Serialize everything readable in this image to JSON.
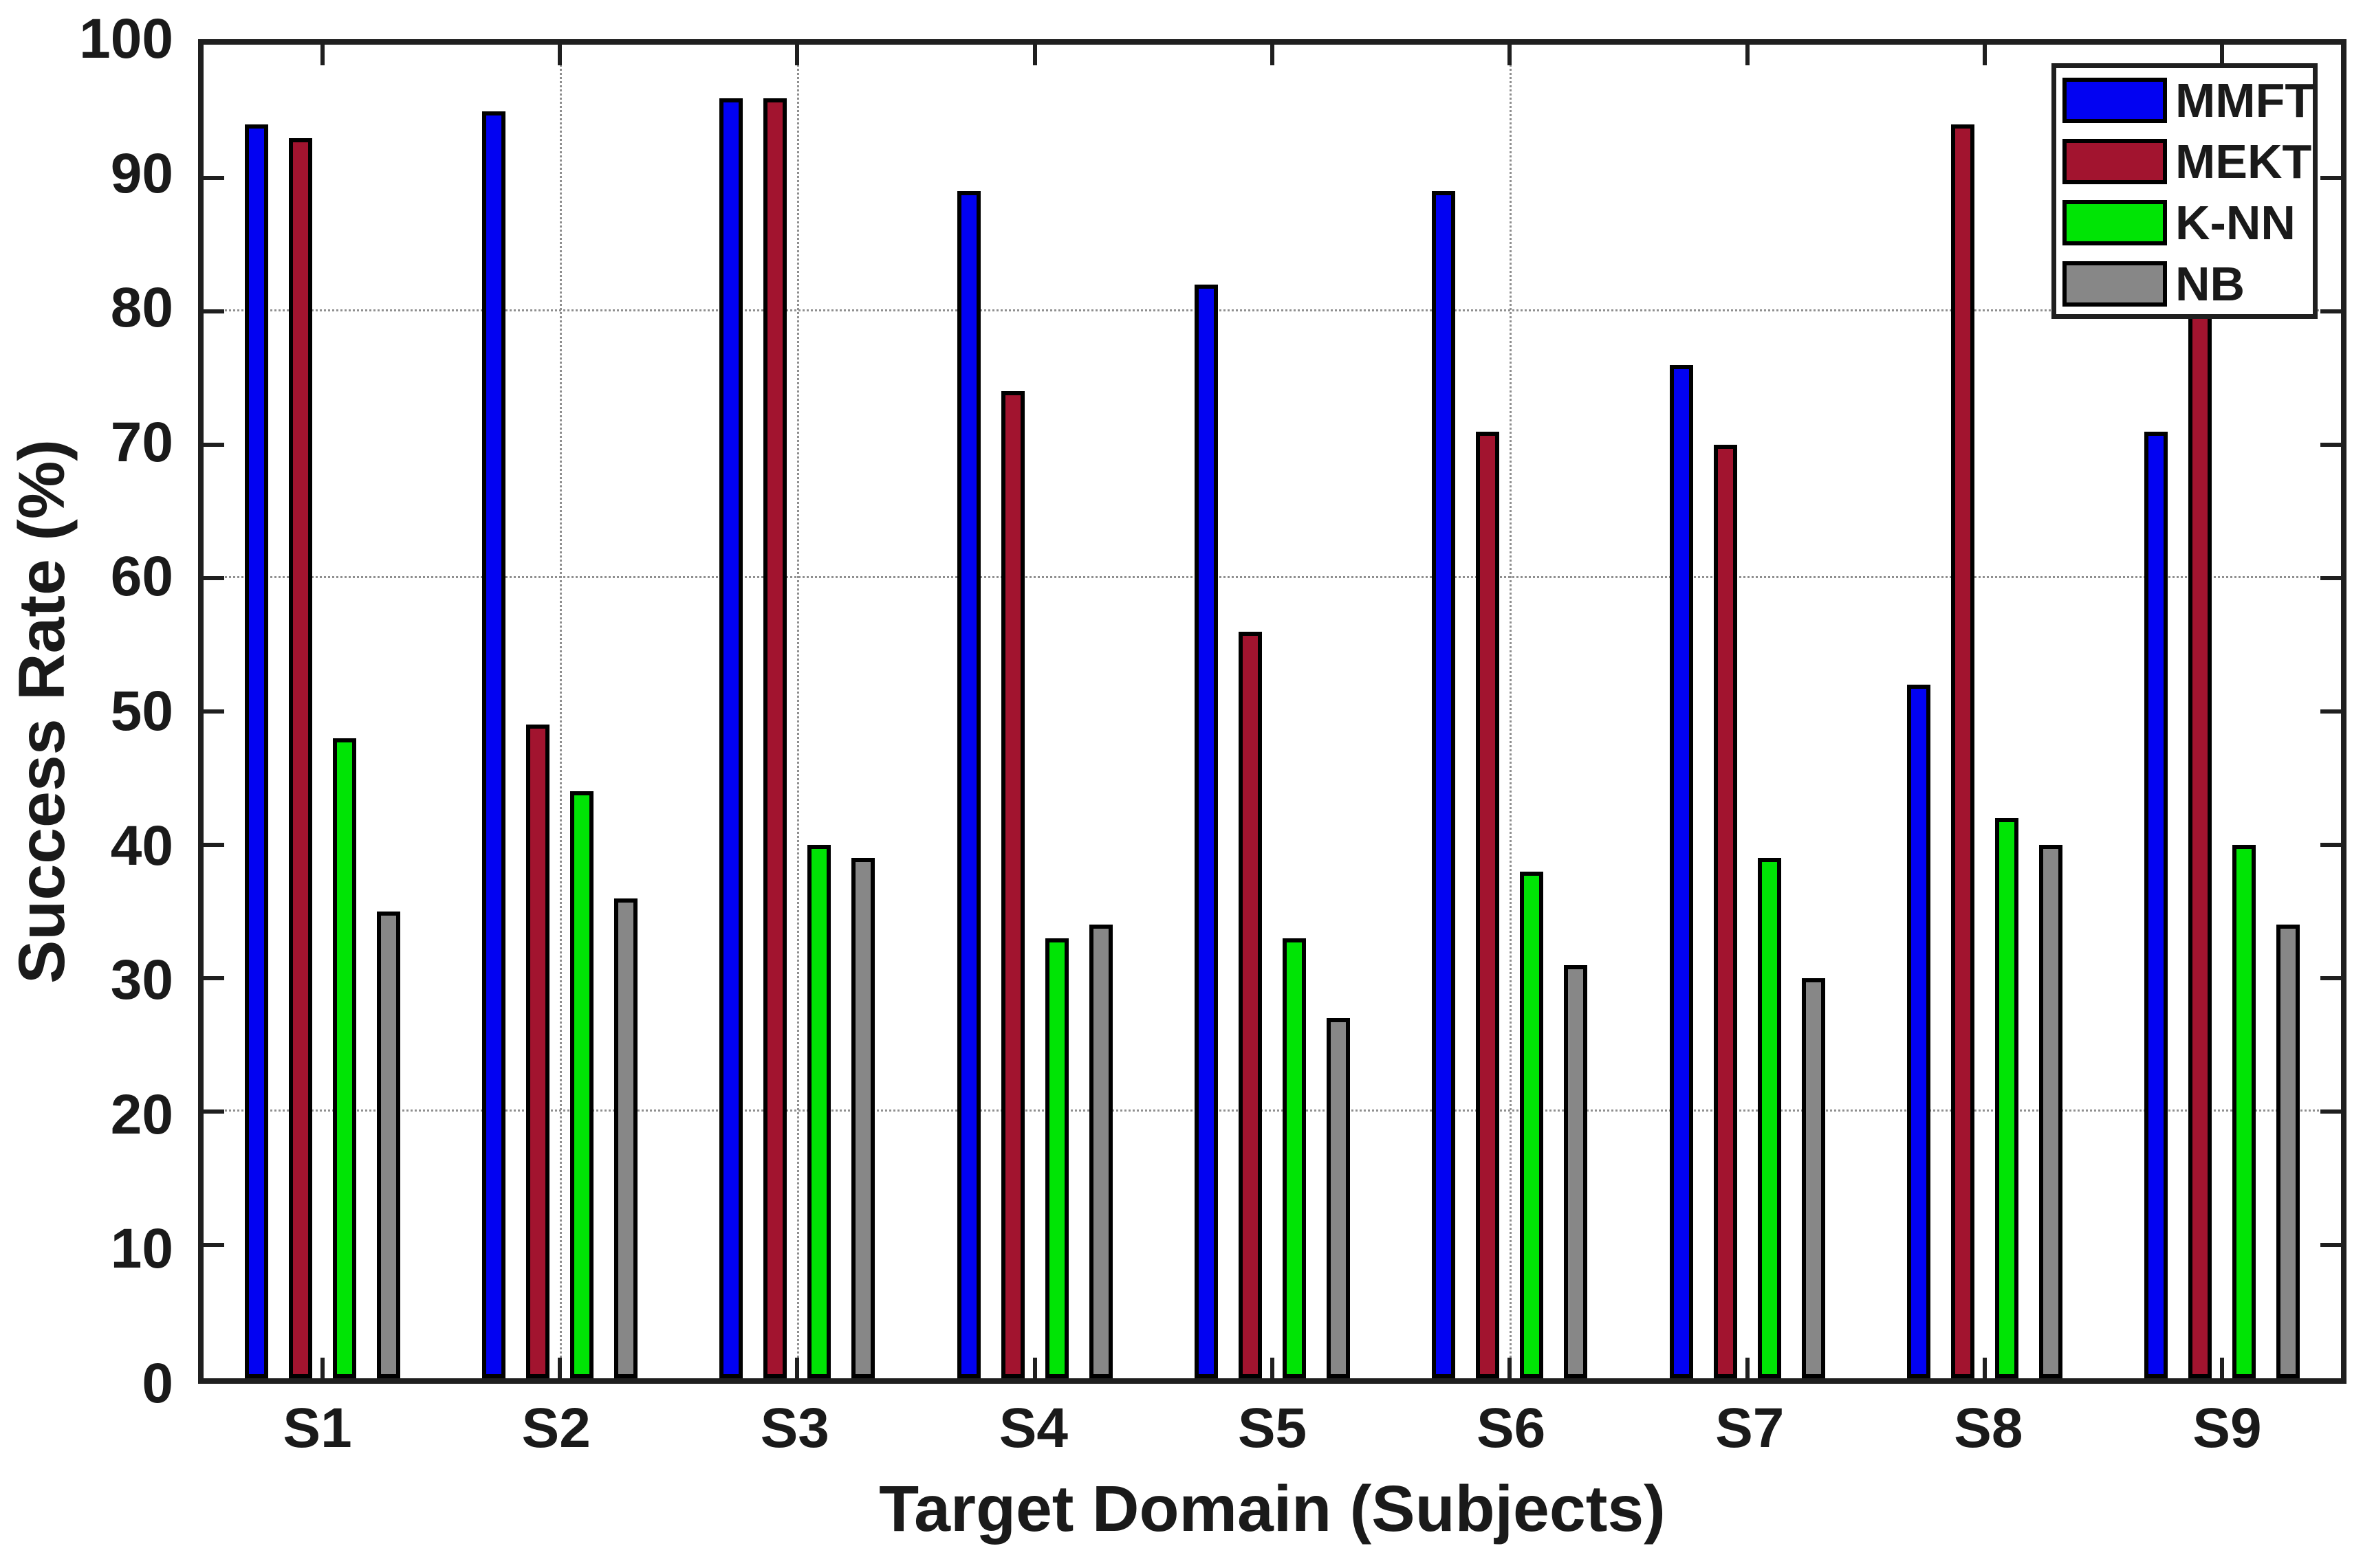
{
  "chart_data": {
    "type": "bar",
    "title": "",
    "xlabel": "Target Domain (Subjects)",
    "ylabel": "Success Rate (%)",
    "categories": [
      "S1",
      "S2",
      "S3",
      "S4",
      "S5",
      "S6",
      "S7",
      "S8",
      "S9"
    ],
    "series": [
      {
        "name": "MMFT",
        "color": "#0202f2",
        "values": [
          94,
          95,
          96,
          89,
          82,
          89,
          76,
          52,
          71
        ]
      },
      {
        "name": "MEKT",
        "color": "#a2142f",
        "values": [
          93,
          49,
          96,
          74,
          56,
          71,
          70,
          94,
          88
        ]
      },
      {
        "name": "K-NN",
        "color": "#00e405",
        "values": [
          48,
          44,
          40,
          33,
          33,
          38,
          39,
          42,
          40
        ]
      },
      {
        "name": "NB",
        "color": "#878787",
        "values": [
          35,
          36,
          39,
          34,
          27,
          31,
          30,
          40,
          34
        ]
      }
    ],
    "ylim": [
      0,
      100
    ],
    "yticks": [
      0,
      10,
      20,
      30,
      40,
      50,
      60,
      70,
      80,
      90,
      100
    ],
    "grid_on": true,
    "grid_y_values": [
      20,
      60,
      80
    ],
    "grid_x_categories": [
      "S2",
      "S3",
      "S6"
    ],
    "legend_position": "top-right",
    "legend_entries": [
      "MMFT",
      "MEKT",
      "K-NN",
      "NB"
    ]
  }
}
